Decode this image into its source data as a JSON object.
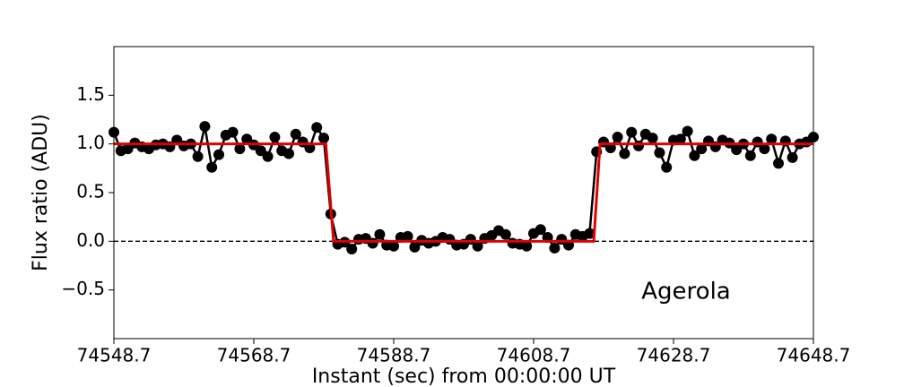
{
  "chart_data": {
    "type": "line",
    "xlabel": "Instant (sec) from 00:00:00 UT",
    "ylabel": "Flux ratio (ADU)",
    "annotation": "Agerola",
    "xlim": [
      74548.7,
      74648.7
    ],
    "xticks": [
      74548.7,
      74568.7,
      74588.7,
      74608.7,
      74628.7,
      74648.7
    ],
    "ylim": [
      -1,
      2
    ],
    "yticks": [
      {
        "value": -0.5,
        "label": "−0.5"
      },
      {
        "value": 0,
        "label": "0.0"
      },
      0.5,
      {
        "value": 1,
        "label": "1.0"
      },
      1.5
    ],
    "reference_line": 0,
    "series": [
      {
        "color": "#000000",
        "markers": true,
        "x": [
          74548.7,
          74549.7,
          74550.7,
          74551.7,
          74552.7,
          74553.7,
          74554.7,
          74555.7,
          74556.7,
          74557.7,
          74558.7,
          74559.7,
          74560.7,
          74561.7,
          74562.7,
          74563.7,
          74564.7,
          74565.7,
          74566.7,
          74567.7,
          74568.7,
          74569.7,
          74570.7,
          74571.7,
          74572.7,
          74573.7,
          74574.7,
          74575.7,
          74576.7,
          74577.7,
          74578.7,
          74579.7,
          74580.7,
          74581.7,
          74582.7,
          74583.7,
          74584.7,
          74585.7,
          74586.7,
          74587.7,
          74588.7,
          74589.7,
          74590.7,
          74591.7,
          74592.7,
          74593.7,
          74594.7,
          74595.7,
          74596.7,
          74597.7,
          74598.7,
          74599.7,
          74600.7,
          74601.7,
          74602.7,
          74603.7,
          74604.7,
          74605.7,
          74606.7,
          74607.7,
          74608.7,
          74609.7,
          74610.7,
          74611.7,
          74612.7,
          74613.7,
          74614.7,
          74615.7,
          74616.7,
          74617.7,
          74618.7,
          74619.7,
          74620.7,
          74621.7,
          74622.7,
          74623.7,
          74624.7,
          74625.7,
          74626.7,
          74627.7,
          74628.7,
          74629.7,
          74630.7,
          74631.7,
          74632.7,
          74633.7,
          74634.7,
          74635.7,
          74636.7,
          74637.7,
          74638.7,
          74639.7,
          74640.7,
          74641.7,
          74642.7,
          74643.7,
          74644.7,
          74645.7,
          74646.7,
          74647.7,
          74648.7
        ],
        "values": [
          1.12,
          0.93,
          0.95,
          1.01,
          0.97,
          0.95,
          0.99,
          1.0,
          0.97,
          1.04,
          0.98,
          1.0,
          0.87,
          1.18,
          0.76,
          0.89,
          1.09,
          1.12,
          0.95,
          1.05,
          0.99,
          0.93,
          0.87,
          1.07,
          0.93,
          0.9,
          1.1,
          1.02,
          0.96,
          1.17,
          1.06,
          0.28,
          -0.03,
          -0.01,
          -0.08,
          0.02,
          0.03,
          -0.02,
          0.07,
          -0.04,
          -0.05,
          0.04,
          0.05,
          -0.06,
          0.01,
          -0.02,
          0.0,
          0.04,
          0.02,
          -0.04,
          -0.03,
          0.02,
          -0.05,
          0.03,
          0.06,
          0.11,
          0.07,
          -0.02,
          -0.03,
          -0.05,
          0.08,
          0.12,
          0.04,
          -0.07,
          0.02,
          -0.04,
          0.07,
          0.05,
          0.08,
          0.92,
          1.02,
          0.96,
          1.07,
          0.9,
          1.12,
          0.98,
          1.1,
          1.06,
          0.91,
          0.76,
          1.04,
          1.05,
          1.13,
          0.88,
          0.95,
          1.03,
          0.97,
          1.04,
          1.01,
          0.94,
          1.0,
          0.88,
          1.02,
          0.95,
          1.05,
          0.8,
          1.03,
          0.86,
          1.0,
          1.02,
          1.07
        ]
      },
      {
        "color": "#e00000",
        "markers": false,
        "x": [
          74548.7,
          74579.0,
          74580.1,
          74617.3,
          74618.2,
          74648.7
        ],
        "values": [
          1,
          1,
          0,
          0,
          1,
          1
        ]
      }
    ]
  }
}
